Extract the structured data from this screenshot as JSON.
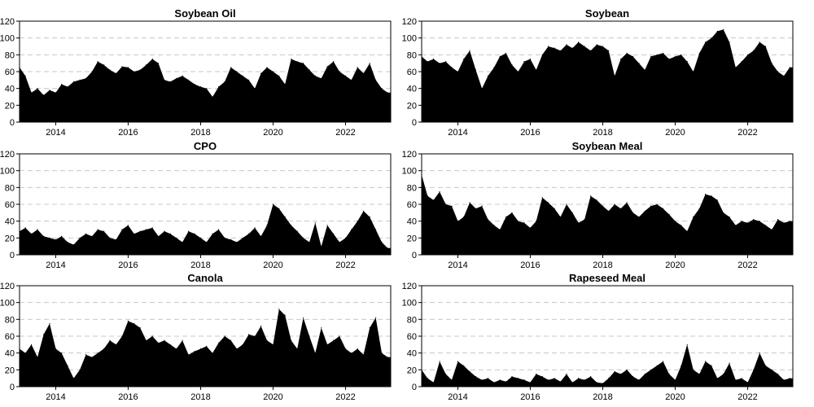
{
  "chart_data": [
    {
      "type": "area",
      "title": "Soybean Oil",
      "xlabel": "",
      "ylabel": "",
      "ylim": [
        0,
        120
      ],
      "xlim": [
        "2013-01-01",
        "2023-04-01"
      ],
      "grid": true,
      "yticks": [
        0,
        20,
        40,
        60,
        80,
        100,
        120
      ],
      "xticks": [
        "2014",
        "2016",
        "2018",
        "2020",
        "2022"
      ],
      "color": "#000000",
      "x": [
        "2013-01",
        "2013-03",
        "2013-05",
        "2013-07",
        "2013-09",
        "2013-11",
        "2014-01",
        "2014-03",
        "2014-05",
        "2014-07",
        "2014-09",
        "2014-11",
        "2015-01",
        "2015-03",
        "2015-05",
        "2015-07",
        "2015-09",
        "2015-11",
        "2016-01",
        "2016-03",
        "2016-05",
        "2016-07",
        "2016-09",
        "2016-11",
        "2017-01",
        "2017-03",
        "2017-05",
        "2017-07",
        "2017-09",
        "2017-11",
        "2018-01",
        "2018-03",
        "2018-05",
        "2018-07",
        "2018-09",
        "2018-11",
        "2019-01",
        "2019-03",
        "2019-05",
        "2019-07",
        "2019-09",
        "2019-11",
        "2020-01",
        "2020-03",
        "2020-05",
        "2020-07",
        "2020-09",
        "2020-11",
        "2021-01",
        "2021-03",
        "2021-05",
        "2021-07",
        "2021-09",
        "2021-11",
        "2022-01",
        "2022-03",
        "2022-05",
        "2022-07",
        "2022-09",
        "2022-11",
        "2023-01",
        "2023-03"
      ],
      "values": [
        65,
        55,
        35,
        40,
        32,
        38,
        35,
        45,
        42,
        48,
        50,
        52,
        60,
        72,
        68,
        62,
        58,
        66,
        65,
        60,
        62,
        68,
        75,
        70,
        50,
        48,
        52,
        55,
        50,
        45,
        42,
        40,
        30,
        42,
        48,
        65,
        60,
        55,
        50,
        40,
        58,
        65,
        60,
        55,
        45,
        75,
        72,
        70,
        62,
        55,
        52,
        66,
        72,
        60,
        55,
        50,
        65,
        58,
        70,
        50,
        40,
        35
      ]
    },
    {
      "type": "area",
      "title": "Soybean",
      "xlabel": "",
      "ylabel": "",
      "ylim": [
        0,
        120
      ],
      "xlim": [
        "2013-01-01",
        "2023-04-01"
      ],
      "grid": true,
      "yticks": [
        0,
        20,
        40,
        60,
        80,
        100,
        120
      ],
      "xticks": [
        "2014",
        "2016",
        "2018",
        "2020",
        "2022"
      ],
      "color": "#000000",
      "x": [
        "2013-01",
        "2013-03",
        "2013-05",
        "2013-07",
        "2013-09",
        "2013-11",
        "2014-01",
        "2014-03",
        "2014-05",
        "2014-07",
        "2014-09",
        "2014-11",
        "2015-01",
        "2015-03",
        "2015-05",
        "2015-07",
        "2015-09",
        "2015-11",
        "2016-01",
        "2016-03",
        "2016-05",
        "2016-07",
        "2016-09",
        "2016-11",
        "2017-01",
        "2017-03",
        "2017-05",
        "2017-07",
        "2017-09",
        "2017-11",
        "2018-01",
        "2018-03",
        "2018-05",
        "2018-07",
        "2018-09",
        "2018-11",
        "2019-01",
        "2019-03",
        "2019-05",
        "2019-07",
        "2019-09",
        "2019-11",
        "2020-01",
        "2020-03",
        "2020-05",
        "2020-07",
        "2020-09",
        "2020-11",
        "2021-01",
        "2021-03",
        "2021-05",
        "2021-07",
        "2021-09",
        "2021-11",
        "2022-01",
        "2022-03",
        "2022-05",
        "2022-07",
        "2022-09",
        "2022-11",
        "2023-01",
        "2023-03"
      ],
      "values": [
        78,
        72,
        75,
        70,
        72,
        65,
        60,
        75,
        85,
        62,
        40,
        55,
        65,
        78,
        82,
        68,
        60,
        72,
        75,
        62,
        80,
        90,
        88,
        85,
        92,
        88,
        95,
        90,
        85,
        92,
        90,
        85,
        55,
        75,
        82,
        78,
        70,
        62,
        78,
        80,
        82,
        75,
        78,
        80,
        72,
        60,
        82,
        95,
        100,
        108,
        110,
        95,
        65,
        72,
        80,
        85,
        95,
        90,
        70,
        60,
        55,
        65
      ]
    },
    {
      "type": "area",
      "title": "CPO",
      "xlabel": "",
      "ylabel": "",
      "ylim": [
        0,
        120
      ],
      "xlim": [
        "2013-01-01",
        "2023-04-01"
      ],
      "grid": true,
      "yticks": [
        0,
        20,
        40,
        60,
        80,
        100,
        120
      ],
      "xticks": [
        "2014",
        "2016",
        "2018",
        "2020",
        "2022"
      ],
      "color": "#000000",
      "x": [
        "2013-01",
        "2013-03",
        "2013-05",
        "2013-07",
        "2013-09",
        "2013-11",
        "2014-01",
        "2014-03",
        "2014-05",
        "2014-07",
        "2014-09",
        "2014-11",
        "2015-01",
        "2015-03",
        "2015-05",
        "2015-07",
        "2015-09",
        "2015-11",
        "2016-01",
        "2016-03",
        "2016-05",
        "2016-07",
        "2016-09",
        "2016-11",
        "2017-01",
        "2017-03",
        "2017-05",
        "2017-07",
        "2017-09",
        "2017-11",
        "2018-01",
        "2018-03",
        "2018-05",
        "2018-07",
        "2018-09",
        "2018-11",
        "2019-01",
        "2019-03",
        "2019-05",
        "2019-07",
        "2019-09",
        "2019-11",
        "2020-01",
        "2020-03",
        "2020-05",
        "2020-07",
        "2020-09",
        "2020-11",
        "2021-01",
        "2021-03",
        "2021-05",
        "2021-07",
        "2021-09",
        "2021-11",
        "2022-01",
        "2022-03",
        "2022-05",
        "2022-07",
        "2022-09",
        "2022-11",
        "2023-01",
        "2023-03"
      ],
      "values": [
        28,
        32,
        25,
        30,
        22,
        20,
        18,
        22,
        15,
        12,
        20,
        25,
        22,
        30,
        28,
        20,
        18,
        30,
        35,
        25,
        28,
        30,
        32,
        22,
        28,
        25,
        20,
        15,
        28,
        25,
        20,
        15,
        25,
        30,
        20,
        18,
        15,
        20,
        25,
        32,
        22,
        35,
        60,
        55,
        45,
        35,
        28,
        20,
        15,
        38,
        10,
        35,
        25,
        15,
        20,
        30,
        40,
        52,
        45,
        30,
        15,
        8
      ]
    },
    {
      "type": "area",
      "title": "Soybean Meal",
      "xlabel": "",
      "ylabel": "",
      "ylim": [
        0,
        120
      ],
      "xlim": [
        "2013-01-01",
        "2023-04-01"
      ],
      "grid": true,
      "yticks": [
        0,
        20,
        40,
        60,
        80,
        100,
        120
      ],
      "xticks": [
        "2014",
        "2016",
        "2018",
        "2020",
        "2022"
      ],
      "color": "#000000",
      "x": [
        "2013-01",
        "2013-03",
        "2013-05",
        "2013-07",
        "2013-09",
        "2013-11",
        "2014-01",
        "2014-03",
        "2014-05",
        "2014-07",
        "2014-09",
        "2014-11",
        "2015-01",
        "2015-03",
        "2015-05",
        "2015-07",
        "2015-09",
        "2015-11",
        "2016-01",
        "2016-03",
        "2016-05",
        "2016-07",
        "2016-09",
        "2016-11",
        "2017-01",
        "2017-03",
        "2017-05",
        "2017-07",
        "2017-09",
        "2017-11",
        "2018-01",
        "2018-03",
        "2018-05",
        "2018-07",
        "2018-09",
        "2018-11",
        "2019-01",
        "2019-03",
        "2019-05",
        "2019-07",
        "2019-09",
        "2019-11",
        "2020-01",
        "2020-03",
        "2020-05",
        "2020-07",
        "2020-09",
        "2020-11",
        "2021-01",
        "2021-03",
        "2021-05",
        "2021-07",
        "2021-09",
        "2021-11",
        "2022-01",
        "2022-03",
        "2022-05",
        "2022-07",
        "2022-09",
        "2022-11",
        "2023-01",
        "2023-03"
      ],
      "values": [
        95,
        70,
        65,
        75,
        60,
        58,
        40,
        45,
        62,
        55,
        58,
        42,
        35,
        30,
        45,
        50,
        40,
        38,
        32,
        40,
        68,
        62,
        55,
        45,
        60,
        50,
        38,
        42,
        70,
        65,
        58,
        52,
        60,
        55,
        62,
        50,
        45,
        52,
        58,
        60,
        55,
        48,
        40,
        35,
        28,
        45,
        55,
        72,
        70,
        65,
        50,
        45,
        35,
        40,
        38,
        42,
        40,
        35,
        30,
        42,
        38,
        40
      ]
    },
    {
      "type": "area",
      "title": "Canola",
      "xlabel": "",
      "ylabel": "",
      "ylim": [
        0,
        120
      ],
      "xlim": [
        "2013-01-01",
        "2023-04-01"
      ],
      "grid": true,
      "yticks": [
        0,
        20,
        40,
        60,
        80,
        100,
        120
      ],
      "xticks": [
        "2014",
        "2016",
        "2018",
        "2020",
        "2022"
      ],
      "color": "#000000",
      "x": [
        "2013-01",
        "2013-03",
        "2013-05",
        "2013-07",
        "2013-09",
        "2013-11",
        "2014-01",
        "2014-03",
        "2014-05",
        "2014-07",
        "2014-09",
        "2014-11",
        "2015-01",
        "2015-03",
        "2015-05",
        "2015-07",
        "2015-09",
        "2015-11",
        "2016-01",
        "2016-03",
        "2016-05",
        "2016-07",
        "2016-09",
        "2016-11",
        "2017-01",
        "2017-03",
        "2017-05",
        "2017-07",
        "2017-09",
        "2017-11",
        "2018-01",
        "2018-03",
        "2018-05",
        "2018-07",
        "2018-09",
        "2018-11",
        "2019-01",
        "2019-03",
        "2019-05",
        "2019-07",
        "2019-09",
        "2019-11",
        "2020-01",
        "2020-03",
        "2020-05",
        "2020-07",
        "2020-09",
        "2020-11",
        "2021-01",
        "2021-03",
        "2021-05",
        "2021-07",
        "2021-09",
        "2021-11",
        "2022-01",
        "2022-03",
        "2022-05",
        "2022-07",
        "2022-09",
        "2022-11",
        "2023-01",
        "2023-03"
      ],
      "values": [
        45,
        40,
        50,
        35,
        62,
        75,
        45,
        40,
        25,
        10,
        20,
        38,
        35,
        40,
        45,
        55,
        50,
        60,
        78,
        75,
        70,
        55,
        60,
        52,
        55,
        50,
        45,
        55,
        38,
        42,
        45,
        48,
        40,
        52,
        60,
        55,
        45,
        50,
        62,
        60,
        72,
        55,
        50,
        92,
        85,
        55,
        45,
        82,
        60,
        40,
        70,
        50,
        55,
        60,
        45,
        40,
        45,
        38,
        70,
        82,
        40,
        35
      ]
    },
    {
      "type": "area",
      "title": "Rapeseed Meal",
      "xlabel": "",
      "ylabel": "",
      "ylim": [
        0,
        120
      ],
      "xlim": [
        "2013-01-01",
        "2023-04-01"
      ],
      "grid": true,
      "yticks": [
        0,
        20,
        40,
        60,
        80,
        100,
        120
      ],
      "xticks": [
        "2014",
        "2016",
        "2018",
        "2020",
        "2022"
      ],
      "color": "#000000",
      "x": [
        "2013-01",
        "2013-03",
        "2013-05",
        "2013-07",
        "2013-09",
        "2013-11",
        "2014-01",
        "2014-03",
        "2014-05",
        "2014-07",
        "2014-09",
        "2014-11",
        "2015-01",
        "2015-03",
        "2015-05",
        "2015-07",
        "2015-09",
        "2015-11",
        "2016-01",
        "2016-03",
        "2016-05",
        "2016-07",
        "2016-09",
        "2016-11",
        "2017-01",
        "2017-03",
        "2017-05",
        "2017-07",
        "2017-09",
        "2017-11",
        "2018-01",
        "2018-03",
        "2018-05",
        "2018-07",
        "2018-09",
        "2018-11",
        "2019-01",
        "2019-03",
        "2019-05",
        "2019-07",
        "2019-09",
        "2019-11",
        "2020-01",
        "2020-03",
        "2020-05",
        "2020-07",
        "2020-09",
        "2020-11",
        "2021-01",
        "2021-03",
        "2021-05",
        "2021-07",
        "2021-09",
        "2021-11",
        "2022-01",
        "2022-03",
        "2022-05",
        "2022-07",
        "2022-09",
        "2022-11",
        "2023-01",
        "2023-03"
      ],
      "values": [
        20,
        10,
        5,
        30,
        15,
        8,
        30,
        25,
        18,
        12,
        8,
        10,
        5,
        8,
        6,
        12,
        10,
        8,
        5,
        15,
        12,
        8,
        10,
        6,
        15,
        5,
        10,
        8,
        12,
        5,
        4,
        10,
        18,
        15,
        20,
        12,
        8,
        15,
        20,
        25,
        30,
        15,
        8,
        25,
        50,
        20,
        15,
        30,
        25,
        10,
        15,
        28,
        8,
        10,
        5,
        20,
        40,
        25,
        20,
        15,
        8,
        10
      ]
    }
  ]
}
